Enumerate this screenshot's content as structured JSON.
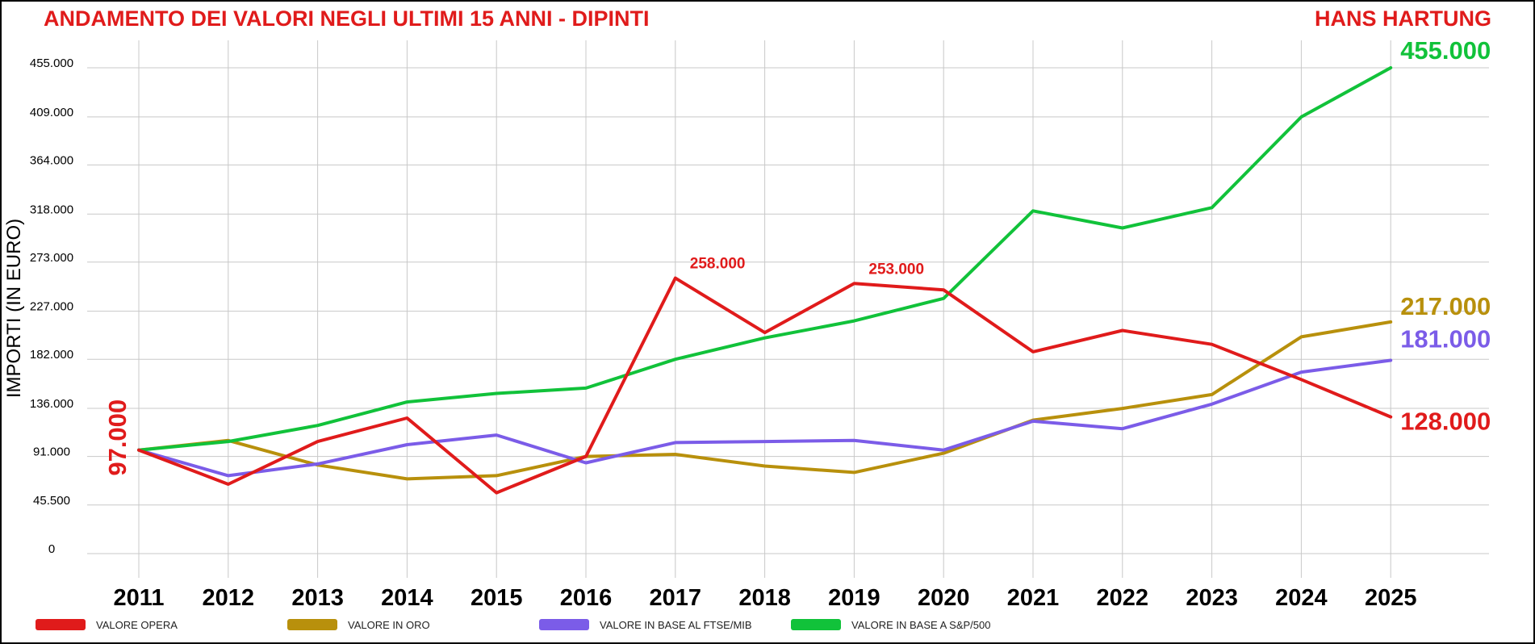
{
  "header": {
    "title": "ANDAMENTO DEI VALORI NEGLI ULTIMI 15 ANNI - DIPINTI",
    "artist": "HANS HARTUNG"
  },
  "colors": {
    "title": "#e01b1b",
    "grid": "#c8c8c8"
  },
  "chart_data": {
    "type": "line",
    "ylabel": "IMPORTI (IN EURO)",
    "xlabel": "",
    "ylim": [
      0,
      455000
    ],
    "y_ticks": [
      "0",
      "45.500",
      "91.000",
      "136.000",
      "182.000",
      "227.000",
      "273.000",
      "318.000",
      "364.000",
      "409.000",
      "455.000"
    ],
    "y_tick_values": [
      0,
      45500,
      91000,
      136000,
      182000,
      227000,
      273000,
      318000,
      364000,
      409000,
      455000
    ],
    "categories": [
      "2011",
      "2012",
      "2013",
      "2014",
      "2015",
      "2016",
      "2017",
      "2018",
      "2019",
      "2020",
      "2021",
      "2022",
      "2023",
      "2024",
      "2025"
    ],
    "grid": true,
    "legend_position": "bottom-left",
    "series": [
      {
        "name": "VALORE OPERA",
        "color": "#e01b1b",
        "values": [
          97000,
          65000,
          105000,
          127000,
          57000,
          91000,
          258000,
          207000,
          253000,
          247000,
          189000,
          209000,
          196000,
          163000,
          128000
        ]
      },
      {
        "name": "VALORE IN ORO",
        "color": "#b8900c",
        "values": [
          97000,
          106000,
          83000,
          70000,
          73000,
          91000,
          93000,
          82000,
          76000,
          94000,
          125000,
          136000,
          149000,
          203000,
          217000
        ]
      },
      {
        "name": "VALORE IN BASE AL FTSE/MIB",
        "color": "#7b5ce8",
        "values": [
          97000,
          73000,
          84000,
          102000,
          111000,
          85000,
          104000,
          105000,
          106000,
          97000,
          124000,
          117000,
          140000,
          170000,
          181000
        ]
      },
      {
        "name": "VALORE IN BASE A S&P/500",
        "color": "#11c23a",
        "values": [
          97000,
          105000,
          120000,
          142000,
          150000,
          155000,
          182000,
          202000,
          218000,
          239000,
          321000,
          305000,
          324000,
          409000,
          455000
        ]
      }
    ],
    "annotations": [
      {
        "text": "97.000",
        "color": "#e01b1b",
        "placement": "start-vertical"
      },
      {
        "text": "258.000",
        "color": "#e01b1b",
        "placement": "peak-2017"
      },
      {
        "text": "253.000",
        "color": "#e01b1b",
        "placement": "peak-2019"
      },
      {
        "text": "455.000",
        "color": "#11c23a",
        "placement": "end"
      },
      {
        "text": "217.000",
        "color": "#b8900c",
        "placement": "end"
      },
      {
        "text": "181.000",
        "color": "#7b5ce8",
        "placement": "end"
      },
      {
        "text": "128.000",
        "color": "#e01b1b",
        "placement": "end"
      }
    ]
  }
}
